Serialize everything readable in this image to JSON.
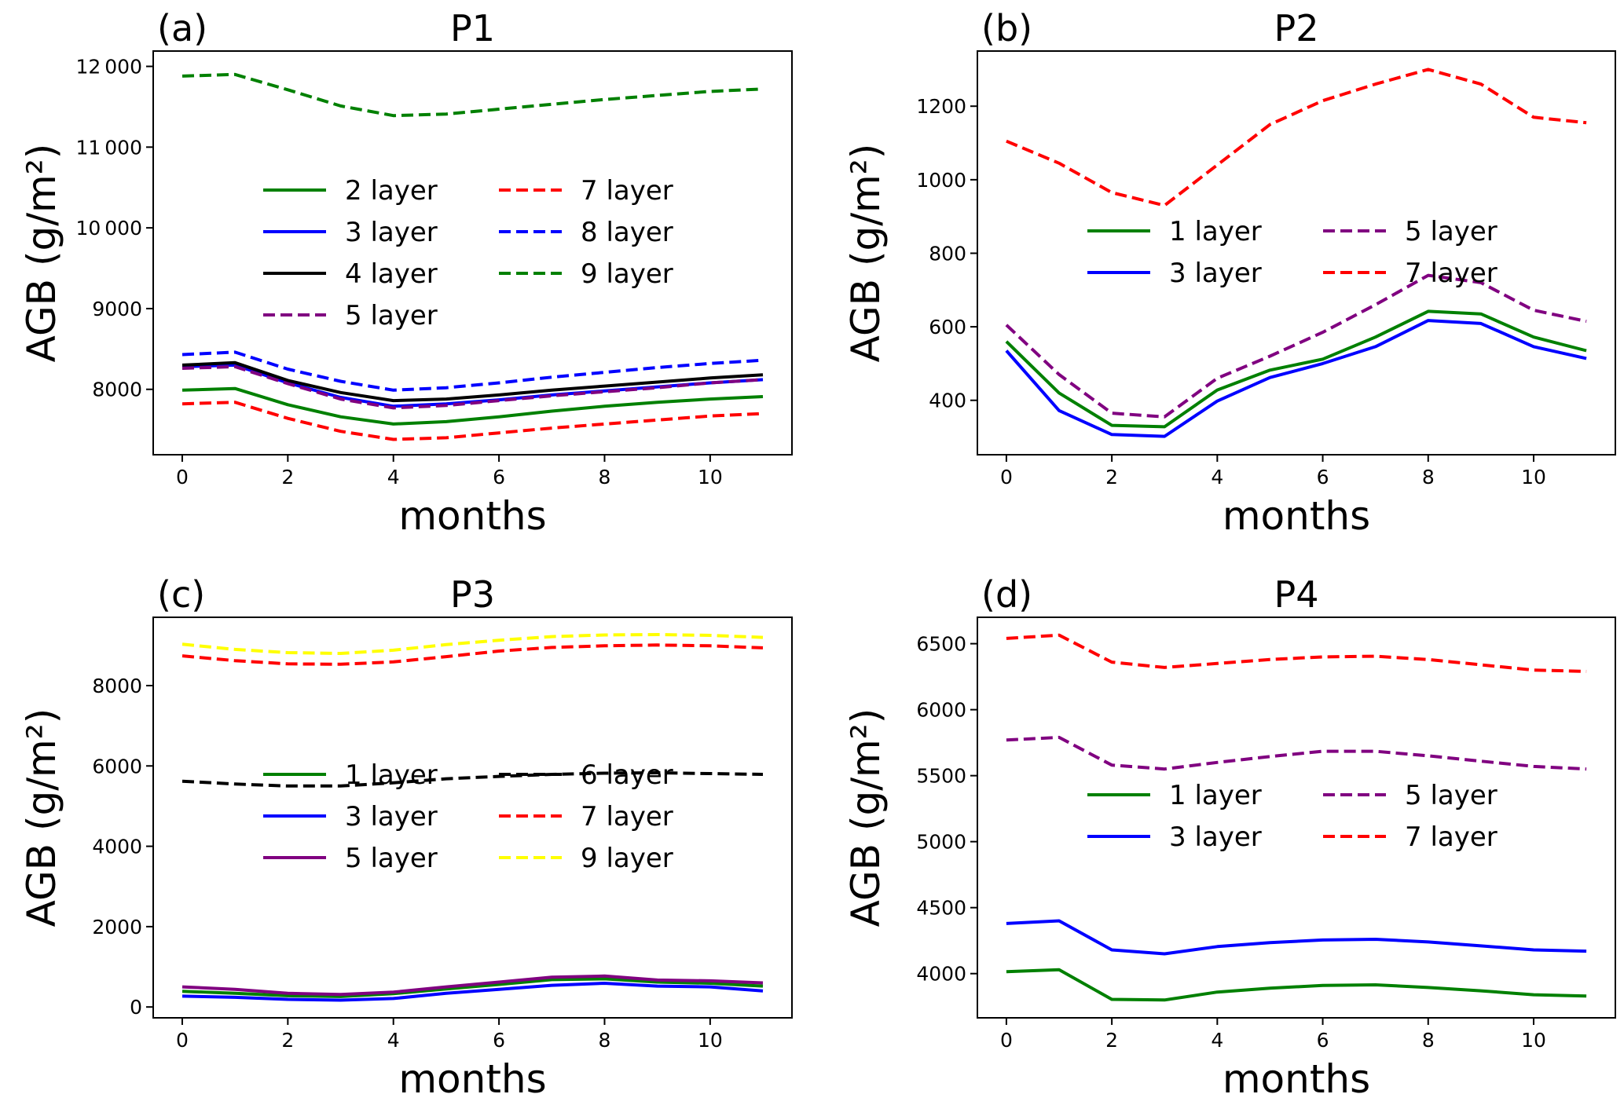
{
  "chart_data": [
    {
      "type": "line",
      "panel_label": "(a)",
      "title": "P1",
      "xlabel": "months",
      "ylabel": "AGB (g/m²)",
      "x": [
        0,
        1,
        2,
        3,
        4,
        5,
        6,
        7,
        8,
        9,
        10,
        11
      ],
      "xticks": [
        0,
        2,
        4,
        6,
        8,
        10
      ],
      "xtick_labels": [
        "0",
        "2",
        "4",
        "6",
        "8",
        "10"
      ],
      "xlim": [
        -0.55,
        11.55
      ],
      "yticks": [
        8000,
        9000,
        10000,
        11000,
        12000
      ],
      "ytick_labels": [
        "8000",
        "9000",
        "10 000",
        "11 000",
        "12 000"
      ],
      "ylim": [
        7190,
        12190
      ],
      "grid": false,
      "legend_position": "center",
      "legend_columns": 2,
      "legend_order": [
        "2 layer",
        "3 layer",
        "4 layer",
        "5 layer",
        "7 layer",
        "8 layer",
        "9 layer"
      ],
      "series": [
        {
          "name": "2 layer",
          "color": "#008000",
          "style": "solid",
          "values": [
            7990,
            8010,
            7810,
            7660,
            7570,
            7600,
            7660,
            7730,
            7790,
            7840,
            7880,
            7910
          ]
        },
        {
          "name": "3 layer",
          "color": "#0000ff",
          "style": "solid",
          "values": [
            8280,
            8300,
            8080,
            7900,
            7790,
            7820,
            7870,
            7930,
            7980,
            8030,
            8080,
            8120
          ]
        },
        {
          "name": "4 layer",
          "color": "#000000",
          "style": "solid",
          "values": [
            8300,
            8330,
            8110,
            7960,
            7860,
            7880,
            7930,
            7990,
            8040,
            8090,
            8140,
            8180
          ]
        },
        {
          "name": "5 layer",
          "color": "#800080",
          "style": "dashed",
          "values": [
            8260,
            8280,
            8070,
            7880,
            7770,
            7800,
            7860,
            7920,
            7970,
            8020,
            8080,
            8120
          ]
        },
        {
          "name": "7 layer",
          "color": "#ff0000",
          "style": "dashed",
          "values": [
            7820,
            7840,
            7640,
            7480,
            7380,
            7400,
            7460,
            7520,
            7570,
            7620,
            7670,
            7700
          ]
        },
        {
          "name": "8 layer",
          "color": "#0000ff",
          "style": "dashed",
          "values": [
            8430,
            8460,
            8250,
            8100,
            7990,
            8020,
            8080,
            8150,
            8210,
            8270,
            8320,
            8360
          ]
        },
        {
          "name": "9 layer",
          "color": "#008000",
          "style": "dashed",
          "values": [
            11880,
            11900,
            11710,
            11510,
            11390,
            11410,
            11470,
            11530,
            11590,
            11640,
            11690,
            11720
          ]
        }
      ]
    },
    {
      "type": "line",
      "panel_label": "(b)",
      "title": "P2",
      "xlabel": "months",
      "ylabel": "AGB (g/m²)",
      "x": [
        0,
        1,
        2,
        3,
        4,
        5,
        6,
        7,
        8,
        9,
        10,
        11
      ],
      "xticks": [
        0,
        2,
        4,
        6,
        8,
        10
      ],
      "xtick_labels": [
        "0",
        "2",
        "4",
        "6",
        "8",
        "10"
      ],
      "xlim": [
        -0.55,
        11.55
      ],
      "yticks": [
        400,
        600,
        800,
        1000,
        1200
      ],
      "ytick_labels": [
        "400",
        "600",
        "800",
        "1000",
        "1200"
      ],
      "ylim": [
        252,
        1350
      ],
      "grid": false,
      "legend_position": "center",
      "legend_columns": 2,
      "legend_order": [
        "1 layer",
        "3 layer",
        "5 layer",
        "7 layer"
      ],
      "series": [
        {
          "name": "1 layer",
          "color": "#008000",
          "style": "solid",
          "values": [
            560,
            420,
            332,
            328,
            428,
            482,
            512,
            572,
            642,
            635,
            572,
            535
          ]
        },
        {
          "name": "3 layer",
          "color": "#0000ff",
          "style": "solid",
          "values": [
            535,
            372,
            307,
            302,
            398,
            462,
            500,
            546,
            617,
            609,
            546,
            514
          ]
        },
        {
          "name": "5 layer",
          "color": "#800080",
          "style": "dashed",
          "values": [
            605,
            470,
            365,
            355,
            460,
            520,
            585,
            660,
            740,
            720,
            645,
            615
          ]
        },
        {
          "name": "7 layer",
          "color": "#ff0000",
          "style": "dashed",
          "values": [
            1105,
            1045,
            965,
            930,
            1040,
            1150,
            1215,
            1260,
            1300,
            1260,
            1170,
            1155
          ]
        }
      ]
    },
    {
      "type": "line",
      "panel_label": "(c)",
      "title": "P3",
      "xlabel": "months",
      "ylabel": "AGB (g/m²)",
      "x": [
        0,
        1,
        2,
        3,
        4,
        5,
        6,
        7,
        8,
        9,
        10,
        11
      ],
      "xticks": [
        0,
        2,
        4,
        6,
        8,
        10
      ],
      "xtick_labels": [
        "0",
        "2",
        "4",
        "6",
        "8",
        "10"
      ],
      "xlim": [
        -0.55,
        11.55
      ],
      "yticks": [
        0,
        2000,
        4000,
        6000,
        8000
      ],
      "ytick_labels": [
        "0",
        "2000",
        "4000",
        "6000",
        "8000"
      ],
      "ylim": [
        -270,
        9700
      ],
      "grid": false,
      "legend_position": "center",
      "legend_columns": 2,
      "legend_order": [
        "1 layer",
        "3 layer",
        "5 layer",
        "6 layer",
        "7 layer",
        "9 layer"
      ],
      "series": [
        {
          "name": "1 layer",
          "color": "#008000",
          "style": "solid",
          "values": [
            390,
            340,
            280,
            260,
            330,
            450,
            560,
            680,
            700,
            620,
            590,
            520
          ]
        },
        {
          "name": "3 layer",
          "color": "#0000ff",
          "style": "solid",
          "values": [
            270,
            240,
            190,
            170,
            210,
            340,
            440,
            540,
            590,
            520,
            500,
            400
          ]
        },
        {
          "name": "5 layer",
          "color": "#800080",
          "style": "solid",
          "values": [
            500,
            440,
            340,
            310,
            370,
            500,
            620,
            740,
            770,
            670,
            650,
            600
          ]
        },
        {
          "name": "6 layer",
          "color": "#000000",
          "style": "dashed",
          "values": [
            5620,
            5550,
            5500,
            5500,
            5580,
            5680,
            5740,
            5790,
            5820,
            5830,
            5810,
            5790
          ]
        },
        {
          "name": "7 layer",
          "color": "#ff0000",
          "style": "dashed",
          "values": [
            8740,
            8620,
            8540,
            8530,
            8590,
            8720,
            8860,
            8950,
            8990,
            9010,
            8990,
            8940
          ]
        },
        {
          "name": "9 layer",
          "color": "#ffff00",
          "style": "dashed",
          "values": [
            9030,
            8900,
            8820,
            8800,
            8880,
            9020,
            9130,
            9220,
            9260,
            9270,
            9250,
            9200
          ]
        }
      ]
    },
    {
      "type": "line",
      "panel_label": "(d)",
      "title": "P4",
      "xlabel": "months",
      "ylabel": "AGB (g/m²)",
      "x": [
        0,
        1,
        2,
        3,
        4,
        5,
        6,
        7,
        8,
        9,
        10,
        11
      ],
      "xticks": [
        0,
        2,
        4,
        6,
        8,
        10
      ],
      "xtick_labels": [
        "0",
        "2",
        "4",
        "6",
        "8",
        "10"
      ],
      "xlim": [
        -0.55,
        11.55
      ],
      "yticks": [
        4000,
        4500,
        5000,
        5500,
        6000,
        6500
      ],
      "ytick_labels": [
        "4000",
        "4500",
        "5000",
        "5500",
        "6000",
        "6500"
      ],
      "ylim": [
        3665,
        6700
      ],
      "grid": false,
      "legend_position": "center",
      "legend_columns": 2,
      "legend_order": [
        "1 layer",
        "3 layer",
        "5 layer",
        "7 layer"
      ],
      "series": [
        {
          "name": "1 layer",
          "color": "#008000",
          "style": "solid",
          "values": [
            4015,
            4030,
            3805,
            3800,
            3860,
            3890,
            3910,
            3915,
            3895,
            3870,
            3840,
            3830
          ]
        },
        {
          "name": "3 layer",
          "color": "#0000ff",
          "style": "solid",
          "values": [
            4380,
            4400,
            4180,
            4150,
            4205,
            4235,
            4255,
            4260,
            4240,
            4210,
            4180,
            4170
          ]
        },
        {
          "name": "5 layer",
          "color": "#800080",
          "style": "dashed",
          "values": [
            5770,
            5790,
            5580,
            5550,
            5600,
            5645,
            5685,
            5685,
            5650,
            5610,
            5570,
            5550
          ]
        },
        {
          "name": "7 layer",
          "color": "#ff0000",
          "style": "dashed",
          "values": [
            6540,
            6565,
            6360,
            6320,
            6350,
            6380,
            6400,
            6405,
            6380,
            6340,
            6300,
            6290
          ]
        }
      ]
    }
  ]
}
